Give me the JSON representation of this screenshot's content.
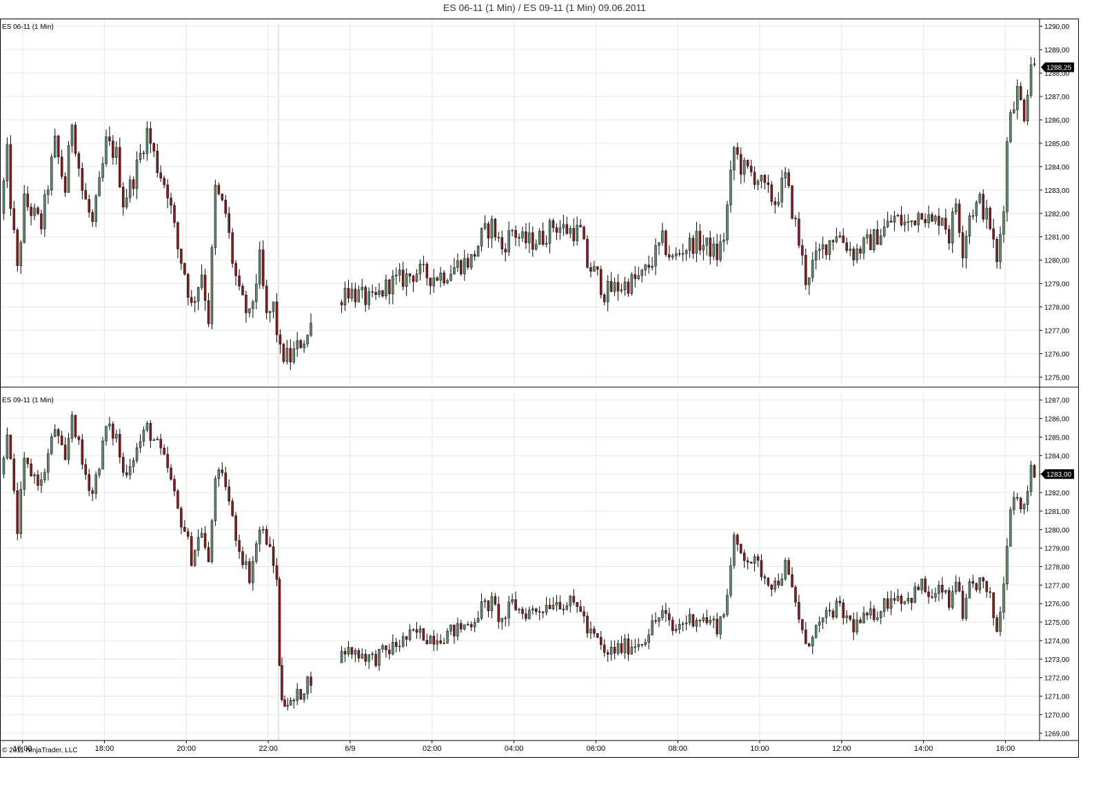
{
  "title": "ES 06-11 (1 Min) / ES 09-11 (1 Min)  09.06.2011",
  "copyright": "© 2011 NinjaTrader, LLC",
  "colors": {
    "up_candle": "#5f8a6e",
    "down_candle": "#8b1a1a",
    "wick": "#000000",
    "grid": "#ece7dc",
    "axis": "#000000",
    "price_marker_bg": "#000000",
    "price_marker_fg": "#ffffff"
  },
  "x_axis": {
    "tick_labels": [
      "16:00",
      "18:00",
      "20:00",
      "22:00",
      "6/9",
      "02:00",
      "04:00",
      "06:00",
      "08:00",
      "10:00",
      "12:00",
      "14:00",
      "16:00"
    ]
  },
  "chart_data": [
    {
      "type": "candlestick",
      "label": "ES 06-11 (1 Min)",
      "ylim": [
        1274.6,
        1290.3
      ],
      "y_ticks": [
        "1290,00",
        "1289,00",
        "1288,00",
        "1287,00",
        "1286,00",
        "1285,00",
        "1284,00",
        "1283,00",
        "1282,00",
        "1281,00",
        "1280,00",
        "1279,00",
        "1278,00",
        "1277,00",
        "1276,00",
        "1275,00"
      ],
      "y_tick_values": [
        1290,
        1289,
        1288,
        1287,
        1286,
        1285,
        1284,
        1283,
        1282,
        1281,
        1280,
        1279,
        1278,
        1277,
        1276,
        1275
      ],
      "last_price": 1288.25,
      "last_price_label": "1288,25",
      "price_path": [
        [
          "15:30",
          1282.0
        ],
        [
          "15:40",
          1284.5
        ],
        [
          "15:45",
          1282.5
        ],
        [
          "15:55",
          1279.5
        ],
        [
          "16:05",
          1282.5
        ],
        [
          "16:30",
          1281.5
        ],
        [
          "16:50",
          1285.0
        ],
        [
          "17:05",
          1283.0
        ],
        [
          "17:15",
          1286.0
        ],
        [
          "17:30",
          1283.0
        ],
        [
          "17:45",
          1281.5
        ],
        [
          "18:00",
          1284.0
        ],
        [
          "18:05",
          1285.0
        ],
        [
          "18:20",
          1284.5
        ],
        [
          "18:30",
          1282.5
        ],
        [
          "18:45",
          1283.5
        ],
        [
          "19:05",
          1285.5
        ],
        [
          "19:20",
          1284.0
        ],
        [
          "19:35",
          1283.0
        ],
        [
          "19:50",
          1280.5
        ],
        [
          "20:00",
          1279.5
        ],
        [
          "20:10",
          1278.0
        ],
        [
          "20:25",
          1279.5
        ],
        [
          "20:35",
          1277.5
        ],
        [
          "20:45",
          1283.0
        ],
        [
          "21:00",
          1282.0
        ],
        [
          "21:10",
          1280.0
        ],
        [
          "21:20",
          1278.5
        ],
        [
          "21:35",
          1277.5
        ],
        [
          "21:50",
          1280.0
        ],
        [
          "22:00",
          1277.5
        ],
        [
          "22:10",
          1278.0
        ],
        [
          "22:20",
          1276.0
        ],
        [
          "22:35",
          1275.8
        ],
        [
          "22:50",
          1276.5
        ],
        [
          "23:00",
          1276.8
        ],
        [
          "23:05",
          1277.2
        ],
        [
          "23:45",
          1278.2
        ],
        [
          "23:55",
          1278.8
        ],
        [
          "00:20",
          1278.4
        ],
        [
          "00:35",
          1278.2
        ],
        [
          "01:00",
          1279.0
        ],
        [
          "01:20",
          1279.2
        ],
        [
          "01:40",
          1279.5
        ],
        [
          "02:00",
          1279.3
        ],
        [
          "02:20",
          1279.4
        ],
        [
          "02:40",
          1279.8
        ],
        [
          "03:00",
          1280.0
        ],
        [
          "03:15",
          1281.0
        ],
        [
          "03:30",
          1281.5
        ],
        [
          "03:45",
          1280.5
        ],
        [
          "04:00",
          1281.3
        ],
        [
          "04:15",
          1280.8
        ],
        [
          "04:30",
          1280.8
        ],
        [
          "04:45",
          1281.0
        ],
        [
          "05:00",
          1281.5
        ],
        [
          "05:20",
          1281.3
        ],
        [
          "05:40",
          1281.2
        ],
        [
          "05:50",
          1279.8
        ],
        [
          "06:05",
          1279.3
        ],
        [
          "06:15",
          1278.6
        ],
        [
          "06:30",
          1278.8
        ],
        [
          "06:50",
          1279.0
        ],
        [
          "07:10",
          1279.3
        ],
        [
          "07:25",
          1280.0
        ],
        [
          "07:40",
          1280.8
        ],
        [
          "07:55",
          1280.0
        ],
        [
          "08:10",
          1280.5
        ],
        [
          "08:30",
          1280.8
        ],
        [
          "08:50",
          1280.5
        ],
        [
          "09:00",
          1280.2
        ],
        [
          "09:10",
          1281.0
        ],
        [
          "09:20",
          1283.5
        ],
        [
          "09:25",
          1284.8
        ],
        [
          "09:35",
          1284.0
        ],
        [
          "09:45",
          1283.8
        ],
        [
          "10:00",
          1283.5
        ],
        [
          "10:10",
          1283.0
        ],
        [
          "10:25",
          1282.5
        ],
        [
          "10:40",
          1283.5
        ],
        [
          "10:55",
          1281.5
        ],
        [
          "11:05",
          1280.0
        ],
        [
          "11:10",
          1279.2
        ],
        [
          "11:20",
          1279.8
        ],
        [
          "11:35",
          1280.5
        ],
        [
          "11:55",
          1281.2
        ],
        [
          "12:20",
          1280.3
        ],
        [
          "12:45",
          1280.8
        ],
        [
          "13:00",
          1281.2
        ],
        [
          "13:20",
          1281.8
        ],
        [
          "13:40",
          1281.5
        ],
        [
          "14:00",
          1282.2
        ],
        [
          "14:15",
          1281.5
        ],
        [
          "14:30",
          1282.0
        ],
        [
          "14:40",
          1281.0
        ],
        [
          "14:50",
          1282.5
        ],
        [
          "15:00",
          1280.5
        ],
        [
          "15:10",
          1282.0
        ],
        [
          "15:25",
          1282.5
        ],
        [
          "15:40",
          1281.5
        ],
        [
          "15:50",
          1279.8
        ],
        [
          "16:00",
          1282.5
        ],
        [
          "16:05",
          1285.0
        ],
        [
          "16:10",
          1286.5
        ],
        [
          "16:20",
          1287.2
        ],
        [
          "16:30",
          1286.3
        ],
        [
          "16:40",
          1288.5
        ],
        [
          "16:45",
          1288.25
        ]
      ]
    },
    {
      "type": "candlestick",
      "label": "ES 09-11 (1 Min)",
      "ylim": [
        1268.6,
        1287.4
      ],
      "y_ticks": [
        "1287,00",
        "1286,00",
        "1285,00",
        "1284,00",
        "1283,00",
        "1282,00",
        "1281,00",
        "1280,00",
        "1279,00",
        "1278,00",
        "1277,00",
        "1276,00",
        "1275,00",
        "1274,00",
        "1273,00",
        "1272,00",
        "1271,00",
        "1270,00",
        "1269,00"
      ],
      "y_tick_values": [
        1287,
        1286,
        1285,
        1284,
        1283,
        1282,
        1281,
        1280,
        1279,
        1278,
        1277,
        1276,
        1275,
        1274,
        1273,
        1272,
        1271,
        1270,
        1269
      ],
      "last_price": 1283.0,
      "last_price_label": "1283,00",
      "price_path": [
        [
          "15:30",
          1283.0
        ],
        [
          "15:40",
          1285.5
        ],
        [
          "15:45",
          1283.5
        ],
        [
          "15:55",
          1280.0
        ],
        [
          "16:05",
          1283.5
        ],
        [
          "16:30",
          1282.5
        ],
        [
          "16:50",
          1285.5
        ],
        [
          "17:05",
          1283.5
        ],
        [
          "17:15",
          1286.3
        ],
        [
          "17:30",
          1283.5
        ],
        [
          "17:45",
          1282.0
        ],
        [
          "18:00",
          1284.5
        ],
        [
          "18:05",
          1285.5
        ],
        [
          "18:20",
          1285.0
        ],
        [
          "18:30",
          1283.0
        ],
        [
          "18:45",
          1284.0
        ],
        [
          "19:05",
          1285.5
        ],
        [
          "19:20",
          1284.5
        ],
        [
          "19:35",
          1283.3
        ],
        [
          "19:50",
          1281.0
        ],
        [
          "20:00",
          1280.0
        ],
        [
          "20:10",
          1278.5
        ],
        [
          "20:25",
          1280.0
        ],
        [
          "20:35",
          1278.0
        ],
        [
          "20:45",
          1283.0
        ],
        [
          "21:00",
          1282.5
        ],
        [
          "21:10",
          1280.5
        ],
        [
          "21:20",
          1279.0
        ],
        [
          "21:35",
          1277.5
        ],
        [
          "21:50",
          1280.0
        ],
        [
          "22:00",
          1279.5
        ],
        [
          "22:10",
          1278.0
        ],
        [
          "22:15",
          1277.5
        ],
        [
          "22:18",
          1272.5
        ],
        [
          "22:22",
          1271.0
        ],
        [
          "22:35",
          1270.5
        ],
        [
          "22:50",
          1271.2
        ],
        [
          "23:00",
          1271.8
        ],
        [
          "23:05",
          1272.0
        ],
        [
          "23:45",
          1272.8
        ],
        [
          "23:55",
          1273.5
        ],
        [
          "00:20",
          1273.3
        ],
        [
          "00:35",
          1273.0
        ],
        [
          "01:00",
          1273.5
        ],
        [
          "01:20",
          1274.0
        ],
        [
          "01:40",
          1274.4
        ],
        [
          "02:00",
          1274.2
        ],
        [
          "02:20",
          1274.3
        ],
        [
          "02:40",
          1274.6
        ],
        [
          "03:00",
          1275.0
        ],
        [
          "03:15",
          1275.8
        ],
        [
          "03:30",
          1276.0
        ],
        [
          "03:45",
          1275.0
        ],
        [
          "04:00",
          1276.0
        ],
        [
          "04:15",
          1275.5
        ],
        [
          "04:30",
          1275.6
        ],
        [
          "04:45",
          1275.8
        ],
        [
          "05:00",
          1276.2
        ],
        [
          "05:20",
          1276.0
        ],
        [
          "05:40",
          1275.8
        ],
        [
          "05:50",
          1274.5
        ],
        [
          "06:05",
          1274.0
        ],
        [
          "06:15",
          1273.2
        ],
        [
          "06:30",
          1273.5
        ],
        [
          "06:50",
          1273.7
        ],
        [
          "07:10",
          1274.0
        ],
        [
          "07:25",
          1274.8
        ],
        [
          "07:40",
          1275.5
        ],
        [
          "07:55",
          1274.5
        ],
        [
          "08:10",
          1275.0
        ],
        [
          "08:30",
          1275.3
        ],
        [
          "08:50",
          1275.0
        ],
        [
          "09:00",
          1274.8
        ],
        [
          "09:10",
          1275.5
        ],
        [
          "09:20",
          1278.0
        ],
        [
          "09:25",
          1279.3
        ],
        [
          "09:35",
          1278.8
        ],
        [
          "09:45",
          1278.5
        ],
        [
          "10:00",
          1278.0
        ],
        [
          "10:10",
          1277.5
        ],
        [
          "10:25",
          1277.0
        ],
        [
          "10:40",
          1278.0
        ],
        [
          "10:55",
          1276.0
        ],
        [
          "11:05",
          1274.5
        ],
        [
          "11:10",
          1273.5
        ],
        [
          "11:20",
          1274.5
        ],
        [
          "11:35",
          1275.0
        ],
        [
          "11:55",
          1275.8
        ],
        [
          "12:20",
          1274.8
        ],
        [
          "12:45",
          1275.3
        ],
        [
          "13:00",
          1275.8
        ],
        [
          "13:20",
          1276.5
        ],
        [
          "13:40",
          1276.2
        ],
        [
          "14:00",
          1277.0
        ],
        [
          "14:15",
          1276.2
        ],
        [
          "14:30",
          1276.8
        ],
        [
          "14:40",
          1275.8
        ],
        [
          "14:50",
          1277.5
        ],
        [
          "15:00",
          1275.0
        ],
        [
          "15:10",
          1276.8
        ],
        [
          "15:25",
          1277.2
        ],
        [
          "15:40",
          1276.2
        ],
        [
          "15:50",
          1274.5
        ],
        [
          "16:00",
          1277.0
        ],
        [
          "16:05",
          1279.5
        ],
        [
          "16:10",
          1281.5
        ],
        [
          "16:20",
          1282.0
        ],
        [
          "16:30",
          1281.0
        ],
        [
          "16:40",
          1283.5
        ],
        [
          "16:45",
          1283.0
        ]
      ]
    }
  ]
}
